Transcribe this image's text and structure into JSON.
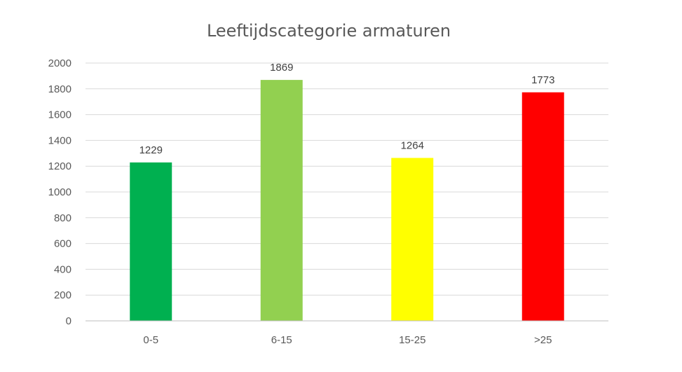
{
  "chart_data": {
    "type": "bar",
    "title": "Leeftijdscategorie armaturen",
    "xlabel": "",
    "ylabel": "",
    "categories": [
      "0-5",
      "6-15",
      "15-25",
      ">25"
    ],
    "values": [
      1229,
      1869,
      1264,
      1773
    ],
    "colors": [
      "#00b050",
      "#92d050",
      "#ffff00",
      "#ff0000"
    ],
    "ylim": [
      0,
      2000
    ],
    "yticks": [
      "0",
      "200",
      "400",
      "600",
      "800",
      "1000",
      "1200",
      "1400",
      "1600",
      "1800",
      "2000"
    ],
    "grid": true,
    "legend": "none"
  }
}
